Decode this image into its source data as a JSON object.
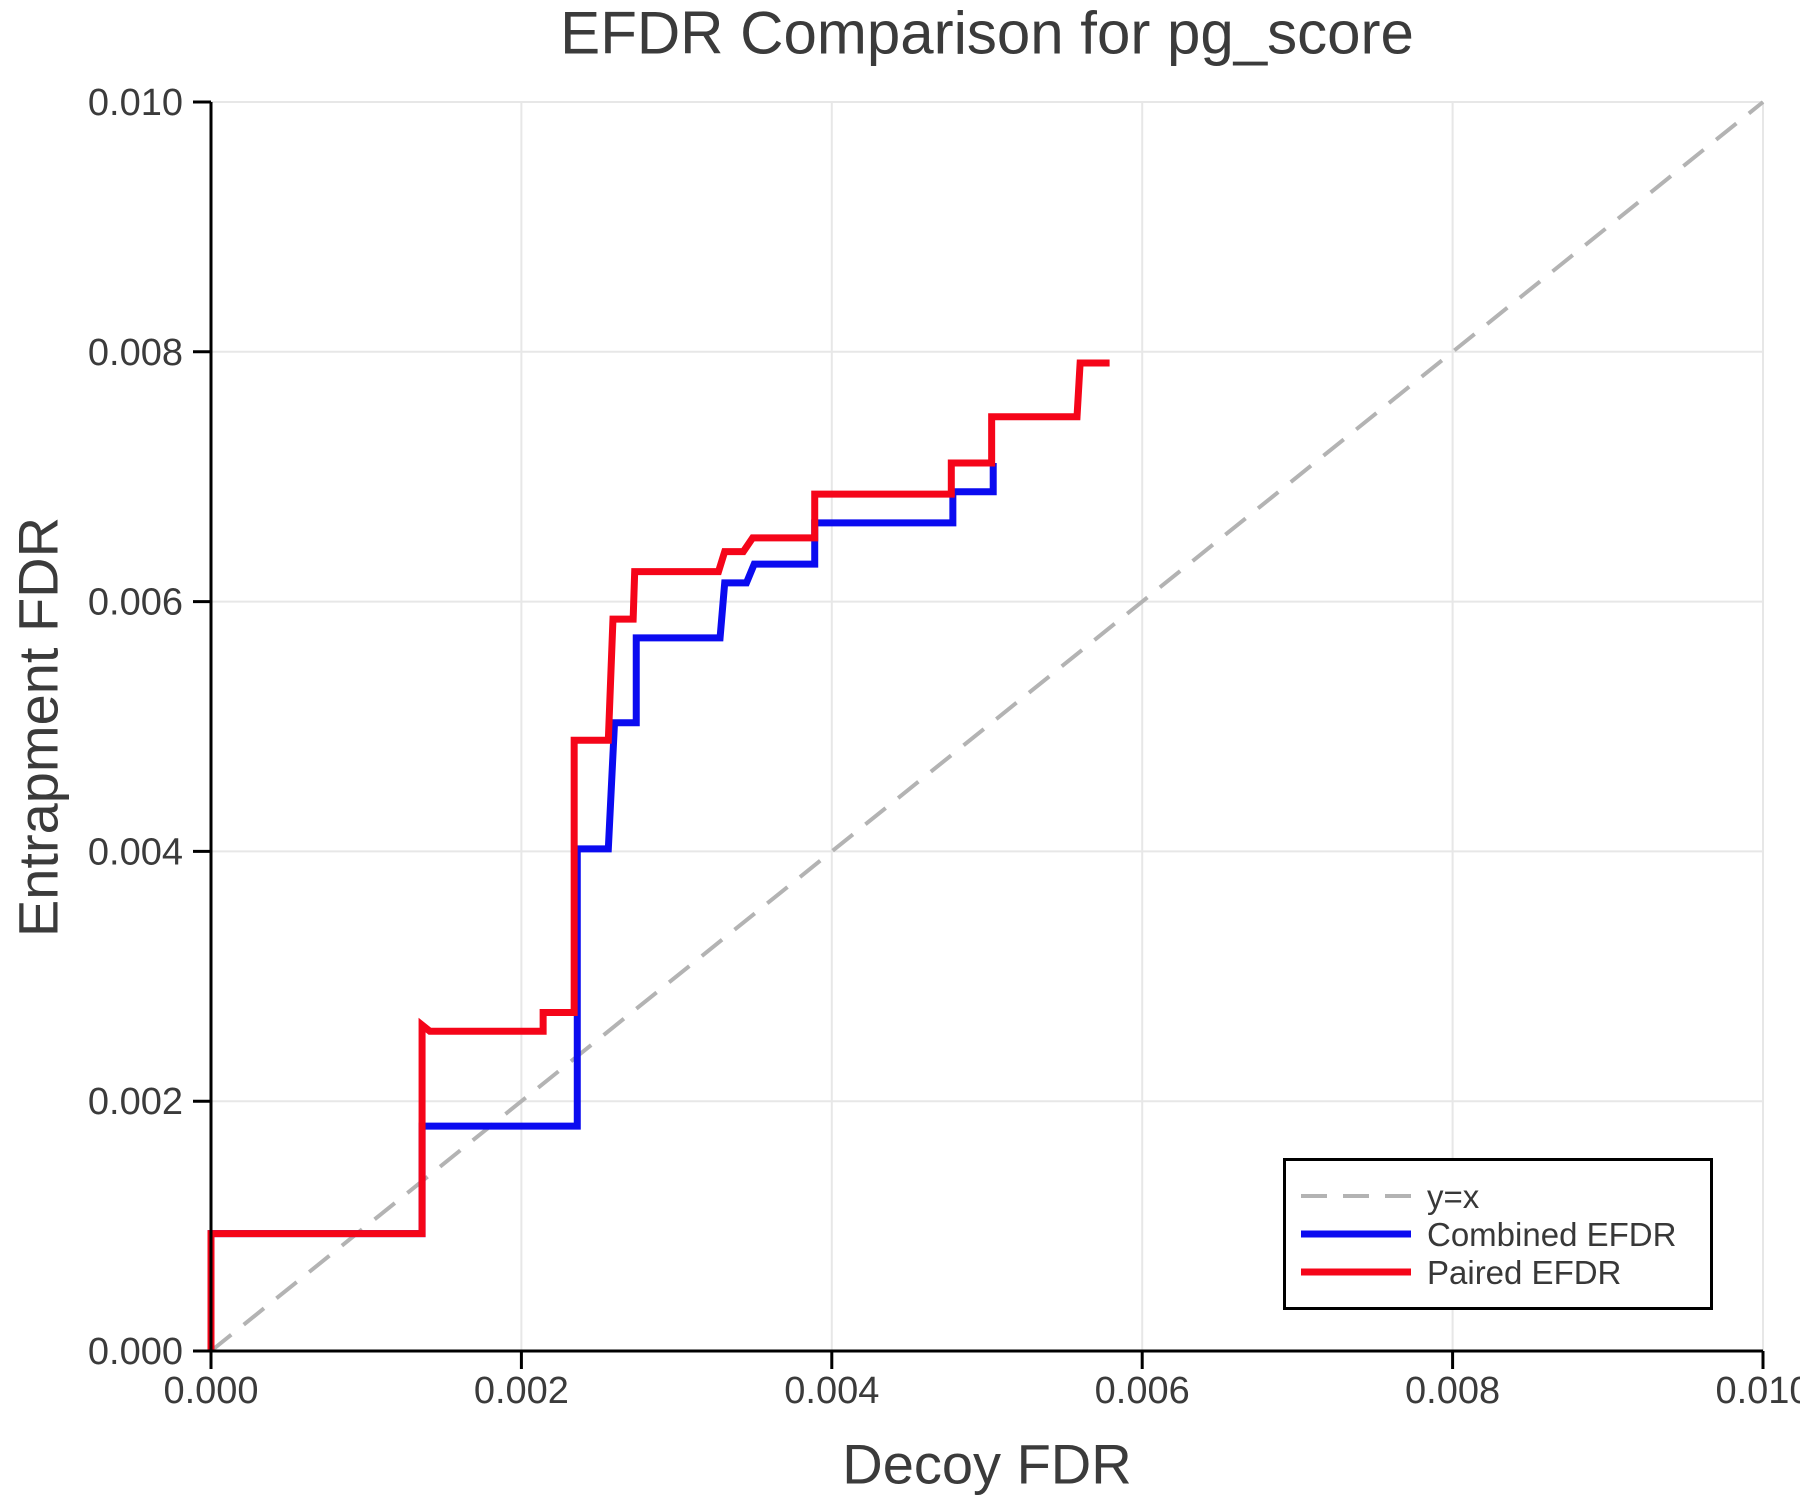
{
  "figure": {
    "background": "#ffffff",
    "text_color": "#3b3b3b",
    "grid_color": "#e7e7e7",
    "spine_color": "#000000"
  },
  "chart_data": {
    "type": "line",
    "title": "EFDR Comparison for pg_score",
    "xlabel": "Decoy FDR",
    "ylabel": "Entrapment FDR",
    "xlim": [
      0.0,
      0.01
    ],
    "ylim": [
      0.0,
      0.01
    ],
    "grid": true,
    "xticks": {
      "values": [
        0.0,
        0.002,
        0.004,
        0.006,
        0.008,
        0.01
      ],
      "labels": [
        "0.000",
        "0.002",
        "0.004",
        "0.006",
        "0.008",
        "0.010"
      ]
    },
    "yticks": {
      "values": [
        0.0,
        0.002,
        0.004,
        0.006,
        0.008,
        0.01
      ],
      "labels": [
        "0.000",
        "0.002",
        "0.004",
        "0.006",
        "0.008",
        "0.010"
      ]
    },
    "legend": {
      "position": "lower right",
      "items": [
        {
          "label": "y=x",
          "color": "#b3b3b3",
          "dash": "26 16",
          "width": 4
        },
        {
          "label": "Combined EFDR",
          "color": "#0b0bf0",
          "dash": "",
          "width": 7
        },
        {
          "label": "Paired EFDR",
          "color": "#f50519",
          "dash": "",
          "width": 7
        }
      ]
    },
    "series": [
      {
        "name": "y=x",
        "color": "#b3b3b3",
        "width": 4,
        "dash": "26 16",
        "points": [
          [
            0.0,
            0.0
          ],
          [
            0.01,
            0.01
          ]
        ]
      },
      {
        "name": "Combined EFDR",
        "color": "#0b0bf0",
        "width": 7,
        "dash": "",
        "points": [
          [
            0.0,
            0.0
          ],
          [
            0.0,
            0.00094
          ],
          [
            0.00136,
            0.00094
          ],
          [
            0.00136,
            0.0018
          ],
          [
            0.00236,
            0.0018
          ],
          [
            0.00236,
            0.00402
          ],
          [
            0.00256,
            0.00402
          ],
          [
            0.0026,
            0.00503
          ],
          [
            0.00274,
            0.00503
          ],
          [
            0.00274,
            0.00571
          ],
          [
            0.00328,
            0.00571
          ],
          [
            0.00331,
            0.00615
          ],
          [
            0.00345,
            0.00615
          ],
          [
            0.0035,
            0.0063
          ],
          [
            0.00389,
            0.0063
          ],
          [
            0.00389,
            0.00663
          ],
          [
            0.00478,
            0.00663
          ],
          [
            0.00478,
            0.00688
          ],
          [
            0.00504,
            0.00688
          ],
          [
            0.00504,
            0.00711
          ]
        ]
      },
      {
        "name": "Paired EFDR",
        "color": "#f50519",
        "width": 7,
        "dash": "",
        "points": [
          [
            0.0,
            0.0
          ],
          [
            0.0,
            0.00094
          ],
          [
            0.00136,
            0.00094
          ],
          [
            0.00136,
            0.00261
          ],
          [
            0.00141,
            0.00256
          ],
          [
            0.00214,
            0.00256
          ],
          [
            0.00214,
            0.00271
          ],
          [
            0.00234,
            0.00271
          ],
          [
            0.00234,
            0.00489
          ],
          [
            0.00256,
            0.00489
          ],
          [
            0.00259,
            0.00586
          ],
          [
            0.00272,
            0.00586
          ],
          [
            0.00273,
            0.00624
          ],
          [
            0.00327,
            0.00624
          ],
          [
            0.00331,
            0.0064
          ],
          [
            0.00343,
            0.0064
          ],
          [
            0.00349,
            0.00651
          ],
          [
            0.00389,
            0.00651
          ],
          [
            0.00389,
            0.00686
          ],
          [
            0.00477,
            0.00686
          ],
          [
            0.00477,
            0.00711
          ],
          [
            0.00503,
            0.00711
          ],
          [
            0.00503,
            0.00748
          ],
          [
            0.00558,
            0.00748
          ],
          [
            0.0056,
            0.00791
          ],
          [
            0.00579,
            0.00791
          ]
        ]
      }
    ]
  }
}
